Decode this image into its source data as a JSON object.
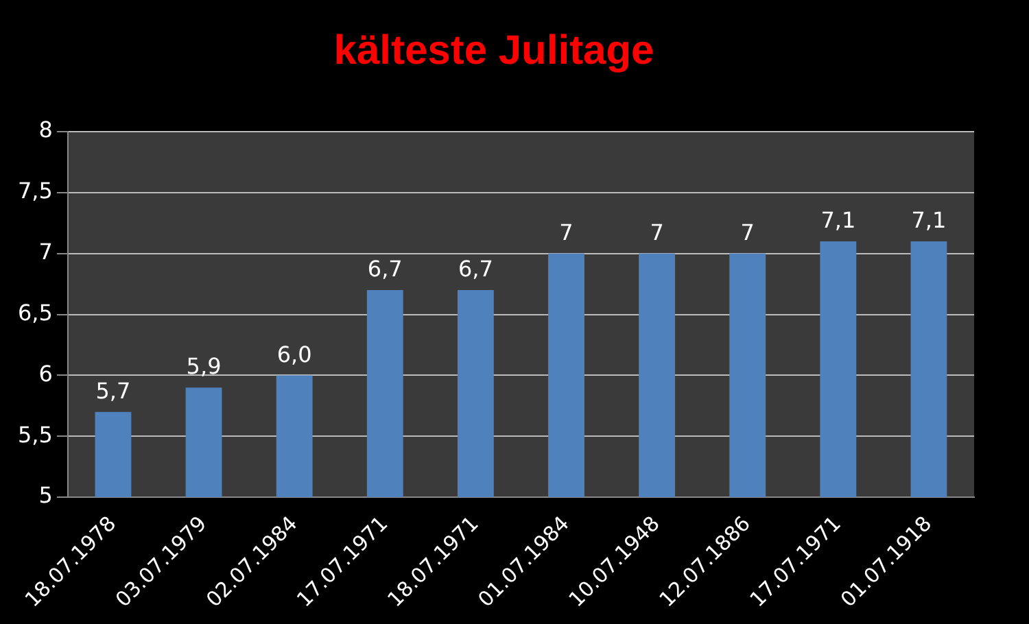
{
  "chart_data": {
    "type": "bar",
    "title": "kälteste Julitage",
    "categories": [
      "18.07.1978",
      "03.07.1979",
      "02.07.1984",
      "17.07.1971",
      "18.07.1971",
      "01.07.1984",
      "10.07.1948",
      "12.07.1886",
      "17.07.1971",
      "01.07.1918"
    ],
    "values": [
      5.7,
      5.9,
      6.0,
      6.7,
      6.7,
      7,
      7,
      7,
      7.1,
      7.1
    ],
    "value_labels": [
      "5,7",
      "5,9",
      "6,0",
      "6,7",
      "6,7",
      "7",
      "7",
      "7",
      "7,1",
      "7,1"
    ],
    "color": "#4f81bd",
    "ylim": [
      5,
      8
    ],
    "yticks": [
      5,
      {
        "value": 5.5,
        "label": "5,5"
      },
      6,
      {
        "value": 6.5,
        "label": "6,5"
      },
      7,
      {
        "value": 7.5,
        "label": "7,5"
      },
      8
    ],
    "grid": "y",
    "legend": false
  }
}
